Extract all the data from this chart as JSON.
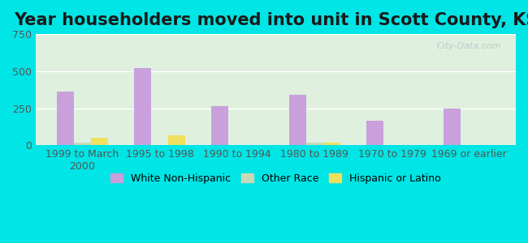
{
  "title": "Year householders moved into unit in Scott County, KS",
  "categories": [
    "1999 to March\n2000",
    "1995 to 1998",
    "1990 to 1994",
    "1980 to 1989",
    "1970 to 1979",
    "1969 or earlier"
  ],
  "series": {
    "White Non-Hispanic": [
      360,
      520,
      265,
      340,
      165,
      245
    ],
    "Other Race": [
      18,
      0,
      0,
      15,
      0,
      0
    ],
    "Hispanic or Latino": [
      50,
      65,
      0,
      20,
      0,
      0
    ]
  },
  "colors": {
    "White Non-Hispanic": "#c9a0dc",
    "Other Race": "#c8d9b8",
    "Hispanic or Latino": "#f0e060"
  },
  "legend_colors": {
    "White Non-Hispanic": "#d8a8e8",
    "Other Race": "#b8d4a0",
    "Hispanic or Latino": "#f5d840"
  },
  "ylim": [
    0,
    750
  ],
  "yticks": [
    0,
    250,
    500,
    750
  ],
  "background_outer": "#00e5e5",
  "background_inner_top": "#e8f5e8",
  "background_inner_bottom": "#f8fff8",
  "watermark": "City-Data.com",
  "title_fontsize": 15,
  "tick_fontsize": 9,
  "legend_fontsize": 9,
  "bar_width": 0.22
}
